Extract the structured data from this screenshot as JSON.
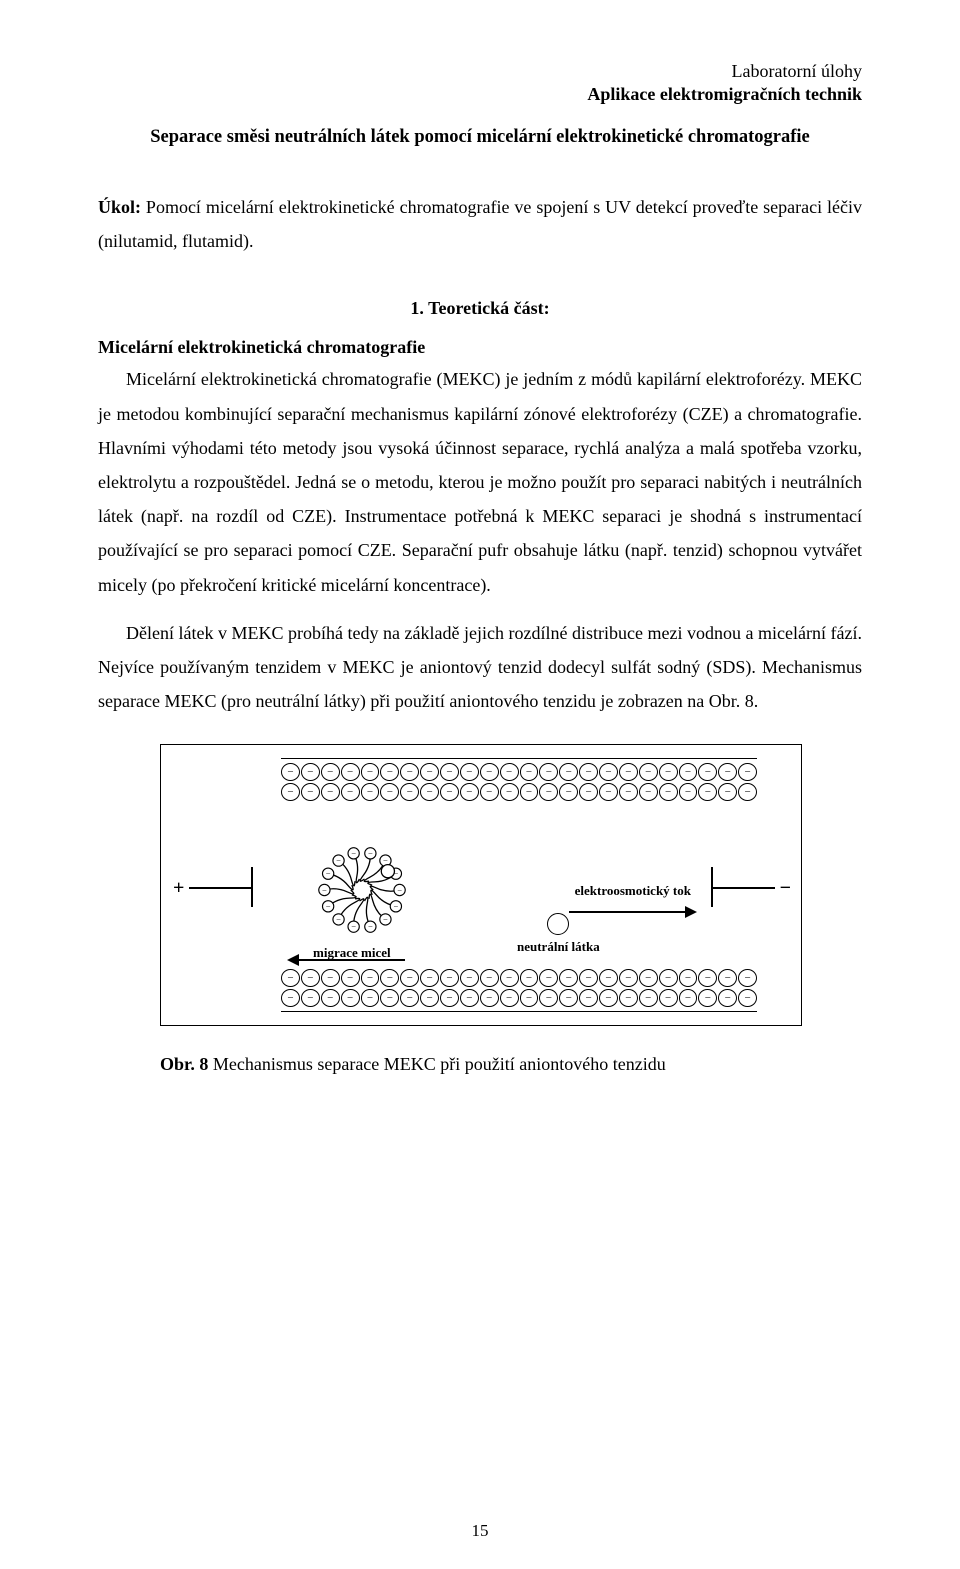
{
  "header": {
    "line1": "Laboratorní úlohy",
    "line2": "Aplikace elektromigračních technik"
  },
  "title": "Separace směsi neutrálních látek pomocí micelární elektrokinetické chromatografie",
  "task": {
    "label": "Úkol:",
    "text": " Pomocí micelární elektrokinetické chromatografie ve spojení s UV detekcí proveďte separaci léčiv (nilutamid, flutamid)."
  },
  "section_heading": "1. Teoretická část:",
  "subheading": "Micelární elektrokinetická chromatografie",
  "para1": "Micelární elektrokinetická chromatografie (MEKC) je jedním z módů kapilární elektroforézy. MEKC je metodou kombinující separační mechanismus kapilární zónové elektroforézy (CZE) a chromatografie. Hlavními výhodami této metody jsou vysoká účinnost separace, rychlá analýza a malá spotřeba vzorku, elektrolytu a rozpouštědel. Jedná se o metodu, kterou je možno použít pro separaci nabitých i neutrálních látek (např. na rozdíl od CZE). Instrumentace potřebná k MEKC separaci je shodná s instrumentací používající se pro separaci pomocí CZE. Separační pufr obsahuje látku (např. tenzid) schopnou vytvářet micely (po překročení kritické micelární koncentrace).",
  "para2": "Dělení látek v MEKC probíhá tedy na základě jejich rozdílné distribuce mezi vodnou a micelární fází. Nejvíce používaným tenzidem v MEKC je aniontový tenzid dodecyl sulfát sodný (SDS). Mechanismus separace MEKC (pro neutrální látky) při použití aniontového tenzidu je zobrazen na Obr. 8.",
  "diagram": {
    "plus": "+",
    "minus": "−",
    "eo_label": "elektroosmotický tok",
    "mig_label": "migrace micel",
    "neutral_label": "neutrální látka",
    "neg_glyph": "−"
  },
  "caption": {
    "label": "Obr. 8",
    "text": " Mechanismus separace MEKC při použití aniontového tenzidu"
  },
  "page_number": "15"
}
